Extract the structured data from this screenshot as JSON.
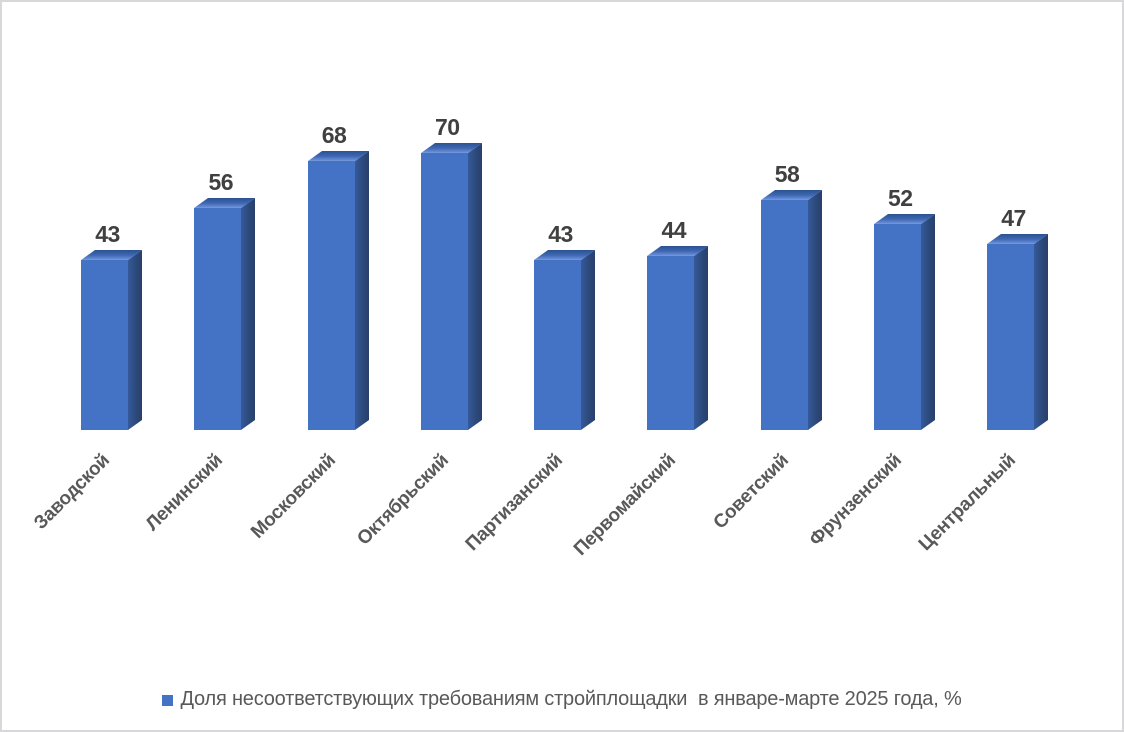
{
  "chart_data": {
    "type": "bar",
    "style": "3d-column",
    "title": "",
    "categories": [
      "Заводской",
      "Ленинский",
      "Московский",
      "Октябрьский",
      "Партизанский",
      "Первомайский",
      "Советский",
      "Фрунзенский",
      "Центральный"
    ],
    "values": [
      43,
      56,
      68,
      70,
      43,
      44,
      58,
      52,
      47
    ],
    "series_name": "Доля несоответствующих требованиям стройплощадки  в январе-марте 2025 года, %",
    "unit": "%",
    "ylim": [
      0,
      70
    ],
    "grid": false,
    "legend_position": "bottom",
    "data_labels_shown": true,
    "colors": {
      "bar_front": "#4472C4",
      "bar_side": "#2d4c80",
      "bar_top_light": "#7a9cde",
      "bar_top_dark": "#2c5190",
      "value_label": "#404040",
      "category_label": "#595959",
      "legend_text": "#595959",
      "frame_border": "#d8d8db",
      "background": "#ffffff"
    }
  }
}
